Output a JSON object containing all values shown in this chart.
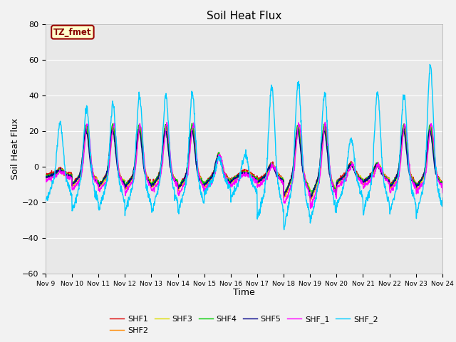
{
  "title": "Soil Heat Flux",
  "xlabel": "Time",
  "ylabel": "Soil Heat Flux",
  "ylim": [
    -60,
    80
  ],
  "yticks": [
    -60,
    -40,
    -20,
    0,
    20,
    40,
    60,
    80
  ],
  "xtick_labels": [
    "Nov 9",
    "Nov 10",
    "Nov 11",
    "Nov 12",
    "Nov 13",
    "Nov 14",
    "Nov 15",
    "Nov 16",
    "Nov 17",
    "Nov 18",
    "Nov 19",
    "Nov 20",
    "Nov 21",
    "Nov 22",
    "Nov 23",
    "Nov 24"
  ],
  "series_colors": {
    "SHF1": "#dd0000",
    "SHF2": "#ff8800",
    "SHF3": "#dddd00",
    "SHF4": "#00cc00",
    "SHF5": "#000088",
    "SHF_1": "#ff00ff",
    "SHF_2": "#00ccff"
  },
  "annotation_text": "TZ_fmet",
  "annotation_facecolor": "#ffffcc",
  "annotation_edgecolor": "#990000",
  "annotation_textcolor": "#880000",
  "background_color": "#f2f2f2",
  "plot_bg_color": "#e8e8e8",
  "line_width": 1.0,
  "legend_ncol_row1": 6,
  "n_days": 16,
  "pts_per_day": 96
}
